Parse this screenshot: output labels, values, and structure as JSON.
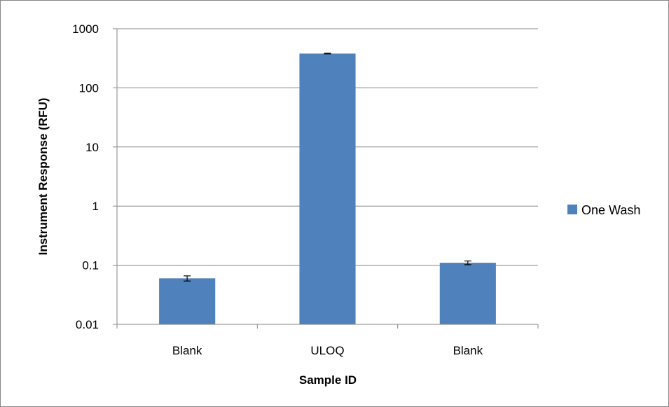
{
  "chart_data": {
    "type": "bar",
    "categories": [
      "Blank",
      "ULOQ",
      "Blank"
    ],
    "series": [
      {
        "name": "One Wash",
        "values": [
          0.06,
          380,
          0.11
        ],
        "error": [
          0.006,
          4,
          0.008
        ],
        "color": "#4F81BD"
      }
    ],
    "xlabel": "Sample ID",
    "ylabel": "Instrument Response (RFU)",
    "yscale": "log",
    "ylim": [
      0.01,
      1000
    ],
    "yticks": [
      "0.01",
      "0.1",
      "1",
      "10",
      "100",
      "1000"
    ],
    "grid": true,
    "legend_position": "right"
  }
}
